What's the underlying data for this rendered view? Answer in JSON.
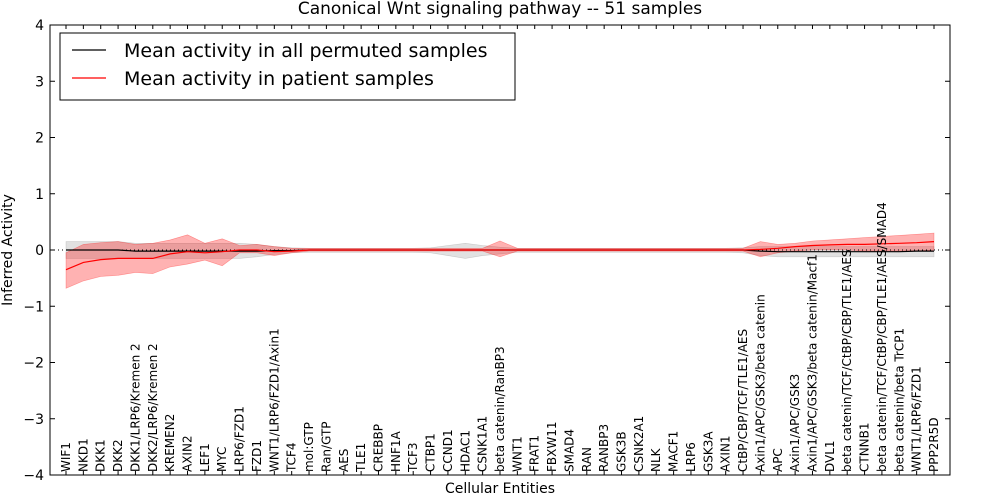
{
  "chart_data": {
    "type": "line",
    "title": "Canonical Wnt signaling pathway -- 51 samples",
    "xlabel": "Cellular Entities",
    "ylabel": "Inferred Activity",
    "ylim": [
      -4,
      4
    ],
    "yticks": [
      -4,
      -3,
      -2,
      -1,
      0,
      1,
      2,
      3,
      4
    ],
    "ytick_labels": [
      "−4",
      "−3",
      "−2",
      "−1",
      "0",
      "1",
      "2",
      "3",
      "4"
    ],
    "legend_position": "top-left",
    "categories": [
      "WIF1",
      "NKD1",
      "DKK1",
      "DKK2",
      "DKK1/LRP6/Kremen 2",
      "DKK2/LRP6/Kremen 2",
      "KREMEN2",
      "AXIN2",
      "LEF1",
      "MYC",
      "LRP6/FZD1",
      "FZD1",
      "WNT1/LRP6/FZD1/Axin1",
      "TCF4",
      "mol:GTP",
      "Ran/GTP",
      "AES",
      "TLE1",
      "CREBBP",
      "HNF1A",
      "TCF3",
      "CTBP1",
      "CCND1",
      "HDAC1",
      "CSNK1A1",
      "beta catenin/RanBP3",
      "WNT1",
      "FRAT1",
      "FBXW11",
      "SMAD4",
      "RAN",
      "RANBP3",
      "GSK3B",
      "CSNK2A1",
      "NLK",
      "MACF1",
      "LRP6",
      "GSK3A",
      "AXIN1",
      "CtBP/CBP/TCF/TLE1/AES",
      "Axin1/APC/GSK3/beta catenin",
      "APC",
      "Axin1/APC/GSK3",
      "Axin1/APC/GSK3/beta catenin/Macf1",
      "DVL1",
      "beta catenin/TCF/CtBP/CBP/TLE1/AES",
      "CTNNB1",
      "beta catenin/TCF/CtBP/CBP/TLE1/AES/SMAD4",
      "beta catenin/beta TrCP1",
      "WNT1/LRP6/FZD1",
      "PPP2R5D"
    ],
    "series": [
      {
        "name": "Mean activity in all permuted samples",
        "color": "#000000",
        "values": [
          0.0,
          0.0,
          0.0,
          0.0,
          -0.02,
          -0.02,
          -0.02,
          -0.02,
          -0.02,
          -0.02,
          -0.02,
          -0.02,
          -0.01,
          -0.01,
          0.0,
          0.0,
          0.0,
          0.0,
          0.0,
          0.0,
          0.0,
          0.0,
          0.0,
          0.0,
          0.0,
          0.0,
          0.0,
          0.0,
          0.0,
          0.0,
          0.0,
          0.0,
          0.0,
          0.0,
          0.0,
          0.0,
          0.0,
          0.0,
          0.0,
          0.0,
          -0.02,
          -0.03,
          -0.03,
          -0.03,
          -0.03,
          -0.03,
          -0.03,
          -0.03,
          -0.03,
          -0.02,
          -0.02
        ],
        "band_upper": [
          0.15,
          0.15,
          0.15,
          0.15,
          0.12,
          0.12,
          0.12,
          0.12,
          0.12,
          0.12,
          0.12,
          0.1,
          0.06,
          0.04,
          0.03,
          0.03,
          0.03,
          0.03,
          0.03,
          0.03,
          0.03,
          0.04,
          0.08,
          0.12,
          0.08,
          0.05,
          0.03,
          0.03,
          0.03,
          0.03,
          0.03,
          0.03,
          0.03,
          0.03,
          0.03,
          0.03,
          0.03,
          0.03,
          0.03,
          0.04,
          0.06,
          0.06,
          0.06,
          0.06,
          0.06,
          0.06,
          0.06,
          0.06,
          0.06,
          0.06,
          0.06
        ],
        "band_lower": [
          -0.15,
          -0.15,
          -0.15,
          -0.15,
          -0.15,
          -0.15,
          -0.15,
          -0.15,
          -0.15,
          -0.15,
          -0.15,
          -0.12,
          -0.08,
          -0.05,
          -0.04,
          -0.04,
          -0.04,
          -0.04,
          -0.04,
          -0.04,
          -0.04,
          -0.05,
          -0.1,
          -0.15,
          -0.1,
          -0.07,
          -0.04,
          -0.04,
          -0.04,
          -0.04,
          -0.04,
          -0.04,
          -0.04,
          -0.04,
          -0.04,
          -0.04,
          -0.04,
          -0.04,
          -0.04,
          -0.05,
          -0.1,
          -0.12,
          -0.12,
          -0.12,
          -0.12,
          -0.12,
          -0.12,
          -0.12,
          -0.12,
          -0.12,
          -0.12
        ]
      },
      {
        "name": "Mean activity in patient samples",
        "color": "#ff0000",
        "values": [
          -0.35,
          -0.22,
          -0.17,
          -0.15,
          -0.15,
          -0.15,
          -0.07,
          -0.03,
          -0.05,
          -0.03,
          0.0,
          0.0,
          -0.03,
          -0.02,
          0.0,
          0.0,
          0.0,
          0.0,
          0.0,
          0.0,
          0.0,
          0.0,
          0.0,
          0.0,
          0.0,
          0.0,
          0.0,
          0.0,
          0.0,
          0.0,
          0.0,
          0.0,
          0.0,
          0.0,
          0.0,
          0.0,
          0.0,
          0.0,
          0.0,
          0.0,
          0.01,
          0.03,
          0.06,
          0.08,
          0.09,
          0.1,
          0.1,
          0.11,
          0.12,
          0.13,
          0.15
        ],
        "band_upper": [
          -0.05,
          0.1,
          0.13,
          0.15,
          0.1,
          0.12,
          0.18,
          0.27,
          0.12,
          0.2,
          0.08,
          0.1,
          0.06,
          0.03,
          0.03,
          0.03,
          0.03,
          0.03,
          0.03,
          0.03,
          0.03,
          0.03,
          0.03,
          0.03,
          0.03,
          0.16,
          0.03,
          0.03,
          0.03,
          0.03,
          0.03,
          0.03,
          0.03,
          0.03,
          0.03,
          0.03,
          0.03,
          0.03,
          0.03,
          0.03,
          0.15,
          0.1,
          0.12,
          0.16,
          0.18,
          0.2,
          0.22,
          0.24,
          0.26,
          0.28,
          0.3
        ],
        "band_lower": [
          -0.68,
          -0.55,
          -0.47,
          -0.45,
          -0.4,
          -0.42,
          -0.3,
          -0.25,
          -0.18,
          -0.28,
          -0.05,
          -0.05,
          -0.1,
          -0.05,
          -0.02,
          -0.02,
          -0.02,
          -0.02,
          -0.02,
          -0.02,
          -0.02,
          -0.02,
          -0.02,
          -0.02,
          -0.02,
          -0.12,
          -0.02,
          -0.02,
          -0.02,
          -0.02,
          -0.02,
          -0.02,
          -0.02,
          -0.02,
          -0.02,
          -0.02,
          -0.02,
          -0.02,
          -0.02,
          -0.02,
          -0.12,
          -0.05,
          -0.02,
          0.0,
          0.0,
          0.0,
          -0.02,
          -0.02,
          -0.02,
          -0.02,
          0.0
        ]
      }
    ]
  }
}
